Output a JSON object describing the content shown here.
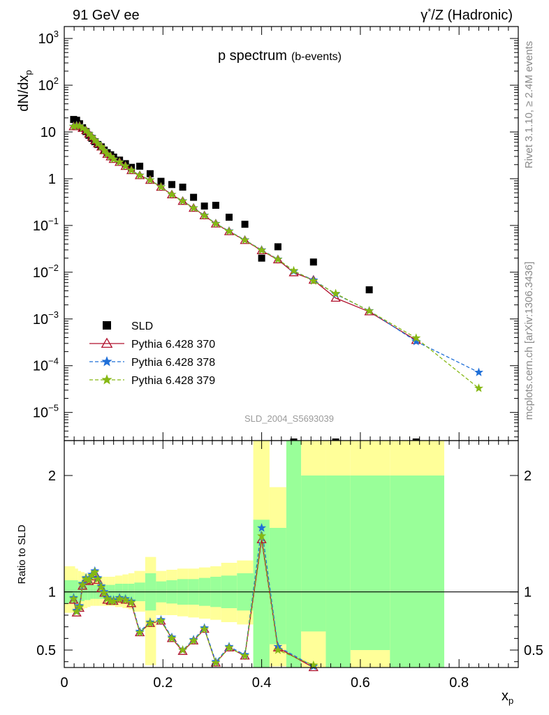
{
  "header": {
    "left": "91 GeV ee",
    "right_prefix": "γ",
    "right_suffix": "/Z (Hadronic)"
  },
  "side_text": {
    "rivet": "Rivet 3.1.10, ≥ 2.4M events",
    "mcplots": "mcplots.cern.ch [arXiv:1306.3436]"
  },
  "chart_data": [
    {
      "type": "scatter",
      "title": "p spectrum",
      "subtitle": "(b-events)",
      "ylabel_main": "dN/dx",
      "ylabel_sub": "p",
      "yscale": "log",
      "ylim": [
        2.5e-06,
        1800
      ],
      "xlim": [
        0,
        0.92
      ],
      "y_tick_labels": [
        "10^-5",
        "10^-4",
        "10^-3",
        "10^-2",
        "10^-1",
        "1",
        "10",
        "10^2",
        "10^3"
      ],
      "watermark": "SLD_2004_S5693039",
      "series": [
        {
          "name": "SLD",
          "color": "#000000",
          "x": [
            0.019,
            0.025,
            0.031,
            0.037,
            0.044,
            0.05,
            0.056,
            0.062,
            0.068,
            0.075,
            0.081,
            0.087,
            0.094,
            0.1,
            0.112,
            0.124,
            0.136,
            0.153,
            0.174,
            0.196,
            0.218,
            0.24,
            0.262,
            0.284,
            0.307,
            0.334,
            0.366,
            0.4,
            0.433,
            0.505,
            0.618,
            0.713,
            0.84
          ],
          "y": [
            18.5,
            17.8,
            15.0,
            12.3,
            10.2,
            8.5,
            7.3,
            6.2,
            5.4,
            4.8,
            4.1,
            3.6,
            3.25,
            2.9,
            2.5,
            2.1,
            1.75,
            1.85,
            1.28,
            0.88,
            0.75,
            0.66,
            0.4,
            0.26,
            0.27,
            0.15,
            0.106,
            0.02,
            0.035,
            0.0165,
            0.0042,
            null,
            null
          ]
        },
        {
          "name": "Pythia 6.428 370",
          "color": "#b0102c",
          "x": [
            0.019,
            0.025,
            0.031,
            0.037,
            0.044,
            0.05,
            0.056,
            0.062,
            0.068,
            0.075,
            0.081,
            0.087,
            0.094,
            0.1,
            0.112,
            0.124,
            0.136,
            0.153,
            0.174,
            0.196,
            0.218,
            0.24,
            0.262,
            0.284,
            0.307,
            0.334,
            0.366,
            0.4,
            0.433,
            0.465,
            0.505,
            0.55,
            0.618,
            0.713
          ],
          "y": [
            13.0,
            13.5,
            13.3,
            12.0,
            10.7,
            9.1,
            7.8,
            6.6,
            5.6,
            4.8,
            4.0,
            3.35,
            2.95,
            2.6,
            2.25,
            1.85,
            1.5,
            1.17,
            0.93,
            0.66,
            0.455,
            0.33,
            0.235,
            0.162,
            0.108,
            0.074,
            0.048,
            0.029,
            0.0185,
            0.0098,
            0.0068,
            0.0028,
            0.00143,
            0.00035
          ]
        },
        {
          "name": "Pythia 6.428 378",
          "color": "#1f6fd8",
          "x": [
            0.019,
            0.025,
            0.031,
            0.037,
            0.044,
            0.05,
            0.056,
            0.062,
            0.068,
            0.075,
            0.081,
            0.087,
            0.094,
            0.1,
            0.112,
            0.124,
            0.136,
            0.153,
            0.174,
            0.196,
            0.218,
            0.24,
            0.262,
            0.284,
            0.307,
            0.334,
            0.366,
            0.4,
            0.433,
            0.465,
            0.505,
            0.55,
            0.618,
            0.713,
            0.84
          ],
          "y": [
            13.2,
            13.8,
            13.5,
            12.1,
            10.8,
            9.2,
            7.9,
            6.7,
            5.7,
            4.85,
            4.05,
            3.38,
            2.98,
            2.62,
            2.27,
            1.87,
            1.52,
            1.19,
            0.94,
            0.67,
            0.46,
            0.335,
            0.238,
            0.165,
            0.11,
            0.076,
            0.049,
            0.03,
            0.019,
            0.0105,
            0.0068,
            0.0034,
            0.0015,
            0.00033,
            7.2e-05
          ]
        },
        {
          "name": "Pythia 6.428 379",
          "color": "#86b814",
          "x": [
            0.019,
            0.025,
            0.031,
            0.037,
            0.044,
            0.05,
            0.056,
            0.062,
            0.068,
            0.075,
            0.081,
            0.087,
            0.094,
            0.1,
            0.112,
            0.124,
            0.136,
            0.153,
            0.174,
            0.196,
            0.218,
            0.24,
            0.262,
            0.284,
            0.307,
            0.334,
            0.366,
            0.4,
            0.433,
            0.465,
            0.505,
            0.55,
            0.618,
            0.713,
            0.84
          ],
          "y": [
            13.1,
            13.6,
            13.4,
            12.0,
            10.75,
            9.15,
            7.85,
            6.65,
            5.65,
            4.82,
            4.02,
            3.36,
            2.96,
            2.61,
            2.26,
            1.86,
            1.51,
            1.18,
            0.935,
            0.665,
            0.458,
            0.332,
            0.236,
            0.163,
            0.109,
            0.075,
            0.0485,
            0.0295,
            0.0188,
            0.0108,
            0.0065,
            0.0035,
            0.00148,
            0.00039,
            3.3e-05
          ]
        }
      ]
    },
    {
      "type": "line",
      "ylabel": "Ratio to SLD",
      "xlabel_main": "x",
      "xlabel_sub": "p",
      "ylim": [
        0.35,
        2.3
      ],
      "xlim": [
        0,
        0.92
      ],
      "x_tick_labels": [
        "0",
        "0.2",
        "0.4",
        "0.6",
        "0.8"
      ],
      "y_tick_labels": [
        "0.5",
        "1",
        "2"
      ],
      "reference_line": 1,
      "uncertainty_bands": [
        {
          "x0": 0.0,
          "x1": 0.022,
          "yel": [
            0.82,
            1.22
          ],
          "grn": [
            0.9,
            1.1
          ]
        },
        {
          "x0": 0.022,
          "x1": 0.028,
          "yel": [
            0.83,
            1.2
          ],
          "grn": [
            0.9,
            1.1
          ]
        },
        {
          "x0": 0.028,
          "x1": 0.034,
          "yel": [
            0.84,
            1.18
          ],
          "grn": [
            0.91,
            1.09
          ]
        },
        {
          "x0": 0.034,
          "x1": 0.041,
          "yel": [
            0.85,
            1.17
          ],
          "grn": [
            0.92,
            1.08
          ]
        },
        {
          "x0": 0.041,
          "x1": 0.047,
          "yel": [
            0.86,
            1.16
          ],
          "grn": [
            0.93,
            1.07
          ]
        },
        {
          "x0": 0.047,
          "x1": 0.053,
          "yel": [
            0.87,
            1.15
          ],
          "grn": [
            0.93,
            1.07
          ]
        },
        {
          "x0": 0.053,
          "x1": 0.059,
          "yel": [
            0.88,
            1.14
          ],
          "grn": [
            0.94,
            1.06
          ]
        },
        {
          "x0": 0.059,
          "x1": 0.065,
          "yel": [
            0.88,
            1.13
          ],
          "grn": [
            0.94,
            1.06
          ]
        },
        {
          "x0": 0.065,
          "x1": 0.072,
          "yel": [
            0.88,
            1.13
          ],
          "grn": [
            0.94,
            1.06
          ]
        },
        {
          "x0": 0.072,
          "x1": 0.078,
          "yel": [
            0.88,
            1.13
          ],
          "grn": [
            0.94,
            1.06
          ]
        },
        {
          "x0": 0.078,
          "x1": 0.084,
          "yel": [
            0.88,
            1.13
          ],
          "grn": [
            0.94,
            1.06
          ]
        },
        {
          "x0": 0.084,
          "x1": 0.09,
          "yel": [
            0.88,
            1.13
          ],
          "grn": [
            0.94,
            1.06
          ]
        },
        {
          "x0": 0.09,
          "x1": 0.097,
          "yel": [
            0.88,
            1.13
          ],
          "grn": [
            0.94,
            1.06
          ]
        },
        {
          "x0": 0.097,
          "x1": 0.103,
          "yel": [
            0.88,
            1.13
          ],
          "grn": [
            0.94,
            1.06
          ]
        },
        {
          "x0": 0.103,
          "x1": 0.118,
          "yel": [
            0.87,
            1.14
          ],
          "grn": [
            0.93,
            1.07
          ]
        },
        {
          "x0": 0.118,
          "x1": 0.13,
          "yel": [
            0.86,
            1.15
          ],
          "grn": [
            0.93,
            1.07
          ]
        },
        {
          "x0": 0.13,
          "x1": 0.142,
          "yel": [
            0.85,
            1.16
          ],
          "grn": [
            0.93,
            1.07
          ]
        },
        {
          "x0": 0.142,
          "x1": 0.164,
          "yel": [
            0.83,
            1.18
          ],
          "grn": [
            0.92,
            1.08
          ]
        },
        {
          "x0": 0.164,
          "x1": 0.186,
          "yel": [
            0.37,
            1.3
          ],
          "grn": [
            0.84,
            1.16
          ]
        },
        {
          "x0": 0.186,
          "x1": 0.207,
          "yel": [
            0.8,
            1.18
          ],
          "grn": [
            0.91,
            1.09
          ]
        },
        {
          "x0": 0.207,
          "x1": 0.229,
          "yel": [
            0.8,
            1.19
          ],
          "grn": [
            0.9,
            1.1
          ]
        },
        {
          "x0": 0.229,
          "x1": 0.251,
          "yel": [
            0.79,
            1.2
          ],
          "grn": [
            0.89,
            1.11
          ]
        },
        {
          "x0": 0.251,
          "x1": 0.273,
          "yel": [
            0.78,
            1.2
          ],
          "grn": [
            0.89,
            1.11
          ]
        },
        {
          "x0": 0.273,
          "x1": 0.296,
          "yel": [
            0.77,
            1.21
          ],
          "grn": [
            0.88,
            1.12
          ]
        },
        {
          "x0": 0.296,
          "x1": 0.318,
          "yel": [
            0.76,
            1.22
          ],
          "grn": [
            0.87,
            1.13
          ]
        },
        {
          "x0": 0.318,
          "x1": 0.35,
          "yel": [
            0.74,
            1.25
          ],
          "grn": [
            0.86,
            1.14
          ]
        },
        {
          "x0": 0.35,
          "x1": 0.383,
          "yel": [
            0.72,
            1.27
          ],
          "grn": [
            0.84,
            1.16
          ]
        },
        {
          "x0": 0.383,
          "x1": 0.416,
          "yel": [
            0.3,
            2.3
          ],
          "grn": [
            0.3,
            1.62
          ]
        },
        {
          "x0": 0.416,
          "x1": 0.45,
          "yel": [
            0.36,
            1.9
          ],
          "grn": [
            0.55,
            1.55
          ]
        },
        {
          "x0": 0.45,
          "x1": 0.48,
          "yel": [
            0.3,
            2.3
          ],
          "grn": [
            0.3,
            2.3
          ]
        },
        {
          "x0": 0.48,
          "x1": 0.53,
          "yel": [
            0.3,
            2.3
          ],
          "grn": [
            0.66,
            2.0
          ]
        },
        {
          "x0": 0.53,
          "x1": 0.58,
          "yel": [
            0.3,
            2.3
          ],
          "grn": [
            0.3,
            2.0
          ]
        },
        {
          "x0": 0.58,
          "x1": 0.66,
          "yel": [
            0.3,
            2.3
          ],
          "grn": [
            0.5,
            2.0
          ]
        },
        {
          "x0": 0.66,
          "x1": 0.77,
          "yel": [
            0.3,
            2.3
          ],
          "grn": [
            0.3,
            2.0
          ]
        }
      ],
      "series": [
        {
          "name": "Pythia 6.428 370",
          "color": "#b0102c",
          "x": [
            0.019,
            0.025,
            0.031,
            0.037,
            0.044,
            0.05,
            0.056,
            0.062,
            0.068,
            0.075,
            0.081,
            0.087,
            0.094,
            0.1,
            0.112,
            0.124,
            0.136,
            0.153,
            0.174,
            0.196,
            0.218,
            0.24,
            0.262,
            0.284,
            0.307,
            0.334,
            0.366,
            0.4,
            0.433,
            0.505
          ],
          "y": [
            0.93,
            0.82,
            0.86,
            1.05,
            1.1,
            1.09,
            1.13,
            1.16,
            1.1,
            1.03,
            0.99,
            0.93,
            0.92,
            0.92,
            0.94,
            0.93,
            0.9,
            0.65,
            0.73,
            0.75,
            0.6,
            0.49,
            0.58,
            0.68,
            0.39,
            0.52,
            0.45,
            1.45,
            0.52,
            0.35
          ]
        },
        {
          "name": "Pythia 6.428 378",
          "color": "#1f6fd8",
          "x": [
            0.019,
            0.025,
            0.031,
            0.037,
            0.044,
            0.05,
            0.056,
            0.062,
            0.068,
            0.075,
            0.081,
            0.087,
            0.094,
            0.1,
            0.112,
            0.124,
            0.136,
            0.153,
            0.174,
            0.196,
            0.218,
            0.24,
            0.262,
            0.284,
            0.307,
            0.334,
            0.366,
            0.4,
            0.433,
            0.505
          ],
          "y": [
            0.95,
            0.84,
            0.88,
            1.07,
            1.12,
            1.11,
            1.15,
            1.18,
            1.12,
            1.05,
            1.0,
            0.95,
            0.93,
            0.93,
            0.95,
            0.94,
            0.92,
            0.66,
            0.74,
            0.76,
            0.61,
            0.5,
            0.59,
            0.69,
            0.4,
            0.53,
            0.46,
            1.55,
            0.53,
            0.36
          ]
        },
        {
          "name": "Pythia 6.428 379",
          "color": "#86b814",
          "x": [
            0.019,
            0.025,
            0.031,
            0.037,
            0.044,
            0.05,
            0.056,
            0.062,
            0.068,
            0.075,
            0.081,
            0.087,
            0.094,
            0.1,
            0.112,
            0.124,
            0.136,
            0.153,
            0.174,
            0.196,
            0.218,
            0.24,
            0.262,
            0.284,
            0.307,
            0.334,
            0.366,
            0.4,
            0.433,
            0.505
          ],
          "y": [
            0.94,
            0.83,
            0.87,
            1.06,
            1.11,
            1.1,
            1.14,
            1.17,
            1.11,
            1.04,
            0.99,
            0.94,
            0.92,
            0.92,
            0.94,
            0.93,
            0.91,
            0.65,
            0.73,
            0.75,
            0.6,
            0.5,
            0.58,
            0.68,
            0.39,
            0.52,
            0.45,
            1.48,
            0.5,
            0.37
          ]
        }
      ]
    }
  ]
}
